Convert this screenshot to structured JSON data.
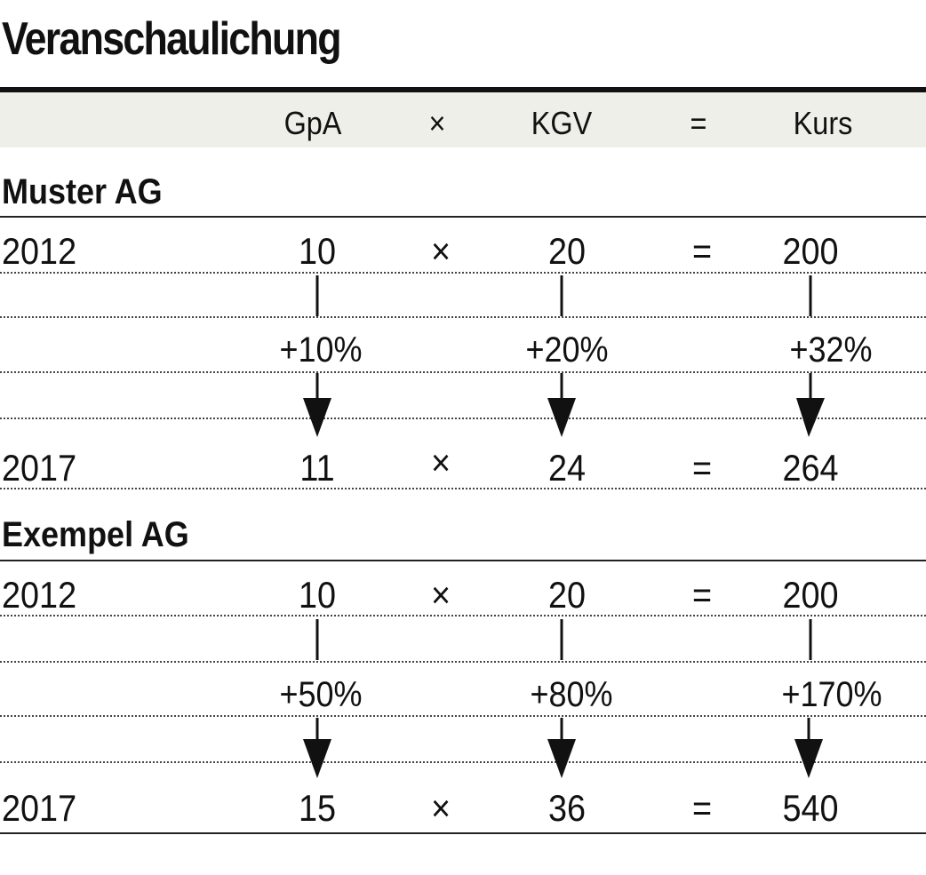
{
  "title": "Veranschaulichung",
  "header": {
    "gpa": "GpA",
    "times": "×",
    "kgv": "KGV",
    "equals": "=",
    "kurs": "Kurs"
  },
  "companies": [
    {
      "name": "Muster AG",
      "row_start": {
        "year": "2012",
        "gpa": "10",
        "times": "×",
        "kgv": "20",
        "equals": "=",
        "kurs": "200"
      },
      "changes": {
        "gpa": "+10%",
        "kgv": "+20%",
        "kurs": "+32%"
      },
      "row_end": {
        "year": "2017",
        "gpa": "11",
        "times": "×",
        "kgv": "24",
        "equals": "=",
        "kurs": "264"
      }
    },
    {
      "name": "Exempel AG",
      "row_start": {
        "year": "2012",
        "gpa": "10",
        "times": "×",
        "kgv": "20",
        "equals": "=",
        "kurs": "200"
      },
      "changes": {
        "gpa": "+50%",
        "kgv": "+80%",
        "kurs": "+170%"
      },
      "row_end": {
        "year": "2017",
        "gpa": "15",
        "times": "×",
        "kgv": "36",
        "equals": "=",
        "kurs": "540"
      }
    }
  ]
}
